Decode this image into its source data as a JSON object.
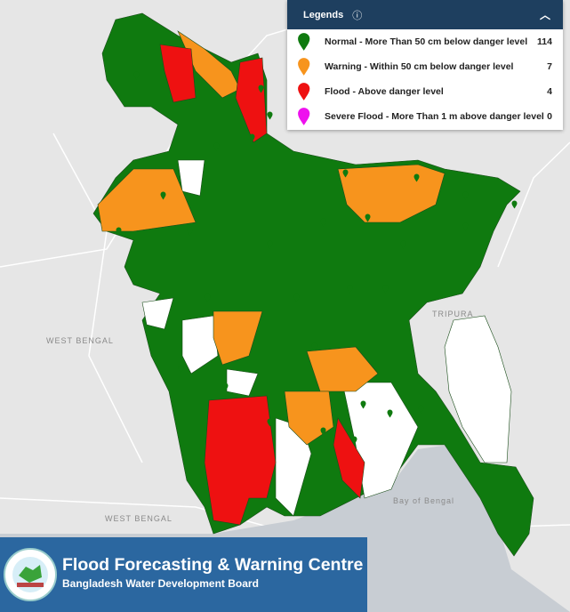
{
  "legend": {
    "title": "Legends",
    "items": [
      {
        "label": "Normal - More Than 50 cm below danger level",
        "count": 114,
        "color": "#0f7a0f"
      },
      {
        "label": "Warning - Within 50 cm below danger level",
        "count": 7,
        "color": "#f7941d"
      },
      {
        "label": "Flood - Above danger level",
        "count": 4,
        "color": "#ee1111"
      },
      {
        "label": "Severe Flood - More Than 1 m above danger level",
        "count": 0,
        "color": "#ee11ee"
      }
    ]
  },
  "footer": {
    "title": "Flood Forecasting & Warning Centre",
    "subtitle": "Bangladesh Water Development Board"
  },
  "map_labels": [
    "WEST BENGAL",
    "TRIPURA",
    "Bay of Bengal",
    "WEST BENGAL"
  ]
}
